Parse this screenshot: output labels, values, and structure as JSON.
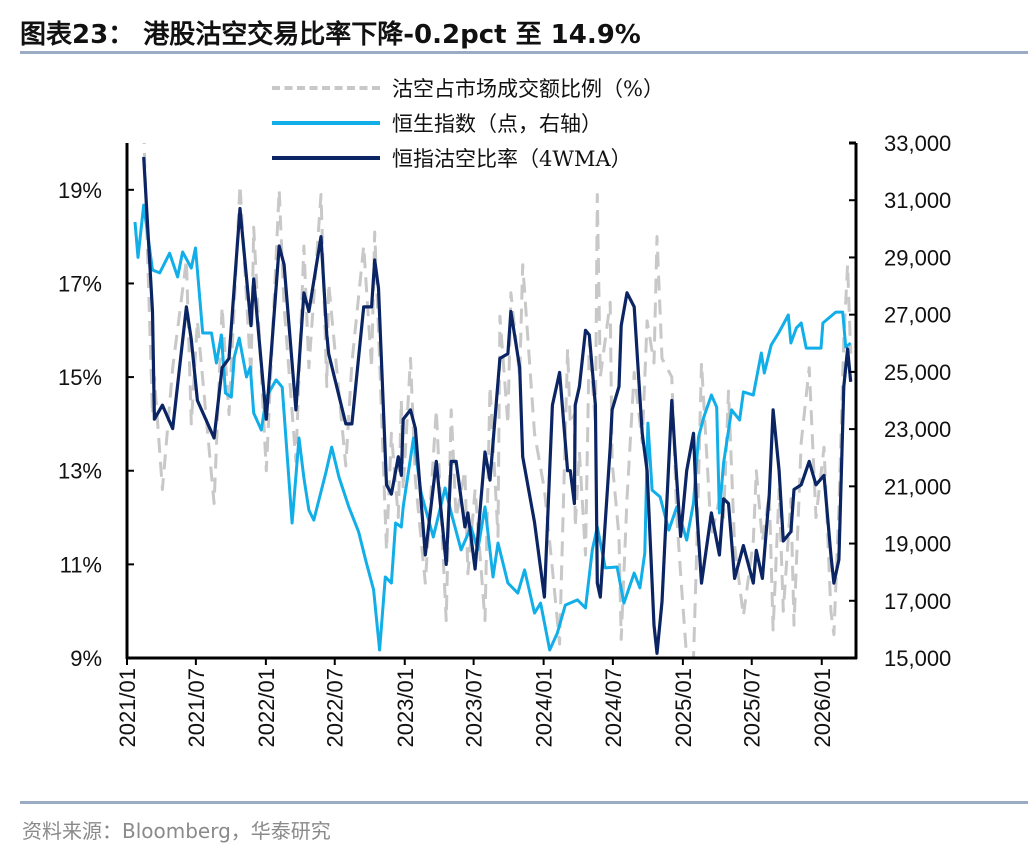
{
  "title": "图表23：  港股沽空交易比率下降-0.2pct 至 14.9%",
  "source": "资料来源：Bloomberg，华泰研究",
  "chart_data": {
    "type": "line",
    "title": "图表23：  港股沽空交易比率下降-0.2pct 至 14.9%",
    "legend_position": "top-center",
    "grid": false,
    "left_axis": {
      "ylim": [
        9,
        20
      ],
      "ticks": [
        "9%",
        "11%",
        "13%",
        "15%",
        "17%",
        "19%"
      ],
      "tick_values": [
        9,
        11,
        13,
        15,
        17,
        19
      ]
    },
    "right_axis": {
      "ylim": [
        15000,
        33000
      ],
      "ticks": [
        "15,000",
        "17,000",
        "19,000",
        "21,000",
        "23,000",
        "25,000",
        "27,000",
        "29,000",
        "31,000",
        "33,000"
      ],
      "tick_values": [
        15000,
        17000,
        19000,
        21000,
        23000,
        25000,
        27000,
        29000,
        31000,
        33000
      ]
    },
    "x_axis": {
      "range": [
        "2021-01-01",
        "2026-04-01"
      ],
      "ticks": [
        "2021/01",
        "2021/07",
        "2022/01",
        "2022/07",
        "2023/01",
        "2023/07",
        "2024/01",
        "2024/07",
        "2025/01",
        "2025/07",
        "2026/01"
      ],
      "tick_dates": [
        "2021-01-01",
        "2021-07-01",
        "2022-01-01",
        "2022-07-01",
        "2023-01-01",
        "2023-07-01",
        "2024-01-01",
        "2024-07-01",
        "2025-01-01",
        "2025-07-01",
        "2026-01-01"
      ]
    },
    "colors": {
      "short_ratio_daily": "#c8c8c8",
      "hsi": "#12aee8",
      "short_ratio_4wma": "#0b2463"
    },
    "ratio_dates": [
      "2021-02-14",
      "2021-03-09",
      "2021-03-14",
      "2021-04-04",
      "2021-05-01",
      "2021-06-06",
      "2021-06-19",
      "2021-07-05",
      "2021-08-18",
      "2021-09-08",
      "2021-09-26",
      "2021-10-25",
      "2021-11-23",
      "2021-11-30",
      "2022-01-02",
      "2022-02-05",
      "2022-02-18",
      "2022-03-21",
      "2022-04-11",
      "2022-04-24",
      "2022-05-26",
      "2022-06-10",
      "2022-06-15",
      "2022-07-30",
      "2022-08-15",
      "2022-09-15",
      "2022-10-06",
      "2022-10-14",
      "2022-10-24",
      "2022-11-14",
      "2022-11-27",
      "2022-12-15",
      "2022-12-23",
      "2022-12-28",
      "2023-01-16",
      "2023-01-29",
      "2023-02-24",
      "2023-03-25",
      "2023-04-20",
      "2023-05-03",
      "2023-05-16",
      "2023-06-08",
      "2023-06-16",
      "2023-07-05",
      "2023-07-31",
      "2023-08-13",
      "2023-09-03",
      "2023-09-08",
      "2023-09-29",
      "2023-10-07",
      "2023-10-30",
      "2023-11-07",
      "2023-12-08",
      "2024-01-03",
      "2024-01-24",
      "2024-02-12",
      "2024-03-04",
      "2024-03-11",
      "2024-03-22",
      "2024-03-24",
      "2024-04-04",
      "2024-04-20",
      "2024-04-30",
      "2024-05-16",
      "2024-05-21",
      "2024-05-29",
      "2024-06-24",
      "2024-06-29",
      "2024-07-17",
      "2024-07-23",
      "2024-08-07",
      "2024-08-26",
      "2024-09-16",
      "2024-09-29",
      "2024-10-17",
      "2024-10-25",
      "2024-11-07",
      "2024-12-03",
      "2024-12-16",
      "2024-12-26",
      "2025-01-11",
      "2025-01-29",
      "2025-02-06",
      "2025-02-19",
      "2025-03-17",
      "2025-04-07",
      "2025-04-18",
      "2025-05-01",
      "2025-05-17",
      "2025-06-09",
      "2025-07-05",
      "2025-07-13",
      "2025-07-29",
      "2025-08-16",
      "2025-08-26",
      "2025-09-11",
      "2025-09-22",
      "2025-10-12",
      "2025-10-20",
      "2025-11-08",
      "2025-11-29",
      "2025-12-17",
      "2026-01-07",
      "2026-01-25",
      "2026-02-02",
      "2026-02-15",
      "2026-02-28",
      "2026-03-10",
      "2026-03-18"
    ],
    "series": [
      {
        "name": "沽空占市场成交额比例（%）",
        "axis": "left",
        "style": "dashed",
        "values": [
          20.3,
          14.2,
          15.0,
          12.6,
          15.2,
          17.5,
          14.0,
          16.2,
          12.3,
          16.5,
          14.2,
          19.1,
          15.0,
          18.2,
          13.0,
          19.0,
          16.5,
          13.2,
          17.8,
          15.2,
          18.9,
          14.8,
          17.0,
          13.1,
          15.3,
          17.8,
          15.2,
          18.1,
          16.0,
          11.3,
          13.8,
          12.0,
          14.5,
          12.6,
          15.4,
          12.8,
          10.6,
          14.3,
          9.8,
          14.3,
          12.0,
          13.0,
          10.8,
          12.6,
          9.8,
          14.8,
          11.6,
          16.3,
          14.0,
          16.8,
          15.0,
          17.4,
          13.8,
          12.6,
          10.9,
          9.3,
          15.6,
          14.0,
          14.2,
          11.8,
          13.4,
          11.2,
          15.8,
          14.0,
          18.9,
          15.0,
          16.6,
          13.2,
          11.6,
          9.4,
          12.4,
          15.1,
          13.6,
          16.2,
          15.3,
          18.0,
          15.4,
          15.0,
          12.0,
          10.8,
          9.0,
          9.0,
          11.2,
          15.3,
          11.6,
          12.4,
          12.0,
          14.7,
          11.4,
          9.9,
          11.5,
          13.0,
          11.5,
          12.5,
          9.6,
          12.6,
          10.0,
          12.4,
          9.7,
          13.6,
          15.2,
          12.0,
          13.5,
          10.0,
          9.5,
          12.2,
          15.8,
          17.4,
          15.5
        ]
      },
      {
        "name": "恒生指数（点，右轴）",
        "axis": "right",
        "style": "solid",
        "dates": [
          "2021-01-22",
          "2021-01-30",
          "2021-02-14",
          "2021-03-09",
          "2021-03-28",
          "2021-04-23",
          "2021-05-14",
          "2021-05-27",
          "2021-06-19",
          "2021-06-30",
          "2021-07-19",
          "2021-08-11",
          "2021-08-24",
          "2021-09-06",
          "2021-09-17",
          "2021-10-02",
          "2021-10-10",
          "2021-10-23",
          "2021-11-11",
          "2021-11-21",
          "2021-11-30",
          "2021-12-20",
          "2022-01-02",
          "2022-01-28",
          "2022-02-13",
          "2022-03-11",
          "2022-03-29",
          "2022-04-11",
          "2022-04-24",
          "2022-05-07",
          "2022-06-08",
          "2022-06-23",
          "2022-07-12",
          "2022-08-07",
          "2022-09-02",
          "2022-09-20",
          "2022-10-11",
          "2022-10-27",
          "2022-11-11",
          "2022-11-27",
          "2022-12-08",
          "2022-12-23",
          "2022-12-28",
          "2023-01-24",
          "2023-02-13",
          "2023-03-17",
          "2023-04-17",
          "2023-05-03",
          "2023-05-29",
          "2023-06-24",
          "2023-07-12",
          "2023-07-31",
          "2023-08-21",
          "2023-09-03",
          "2023-09-29",
          "2023-10-25",
          "2023-11-12",
          "2023-12-08",
          "2023-12-24",
          "2024-01-17",
          "2024-02-06",
          "2024-02-27",
          "2024-03-30",
          "2024-04-20",
          "2024-05-08",
          "2024-05-21",
          "2024-06-11",
          "2024-07-12",
          "2024-07-30",
          "2024-08-26",
          "2024-09-10",
          "2024-09-23",
          "2024-10-01",
          "2024-10-12",
          "2024-11-02",
          "2024-11-25",
          "2024-12-16",
          "2025-01-11",
          "2025-01-29",
          "2025-02-11",
          "2025-02-25",
          "2025-03-17",
          "2025-03-31",
          "2025-04-07",
          "2025-04-18",
          "2025-05-09",
          "2025-05-30",
          "2025-06-09",
          "2025-07-05",
          "2025-07-26",
          "2025-08-03",
          "2025-08-21",
          "2025-09-11",
          "2025-10-05",
          "2025-10-12",
          "2025-10-26",
          "2025-11-08",
          "2025-11-21",
          "2025-12-12",
          "2025-12-30",
          "2026-01-04",
          "2026-02-07",
          "2026-02-25",
          "2026-03-05",
          "2026-03-18"
        ],
        "values": [
          30240,
          29000,
          30830,
          28560,
          28460,
          29150,
          28320,
          29190,
          28630,
          29330,
          26360,
          26360,
          25310,
          26290,
          24260,
          24120,
          25520,
          26180,
          24820,
          25170,
          23560,
          22970,
          24120,
          24720,
          24470,
          19720,
          22690,
          21290,
          20170,
          19820,
          21500,
          22370,
          21330,
          20280,
          19400,
          18430,
          17380,
          15280,
          17830,
          17620,
          19720,
          19580,
          20280,
          22690,
          20770,
          19230,
          20940,
          20070,
          18780,
          19580,
          18780,
          20280,
          17830,
          19020,
          17620,
          17270,
          18080,
          16570,
          16920,
          15280,
          15870,
          16850,
          17030,
          16750,
          18780,
          19580,
          18150,
          18180,
          16920,
          17970,
          17450,
          18670,
          23210,
          20870,
          20630,
          19470,
          20280,
          19120,
          20420,
          22720,
          23420,
          24190,
          23770,
          20070,
          21820,
          23670,
          23320,
          24300,
          24190,
          25660,
          24960,
          25940,
          26390,
          26990,
          26010,
          26530,
          26710,
          25830,
          25830,
          25830,
          26710,
          27090,
          27090,
          25870,
          26010
        ]
      },
      {
        "name": "恒指沽空比率（4WMA）",
        "axis": "left",
        "style": "solid",
        "values": [
          19.7,
          16.4,
          14.1,
          14.4,
          13.9,
          16.5,
          15.8,
          14.5,
          13.7,
          15.2,
          15.4,
          18.6,
          16.1,
          17.1,
          14.1,
          17.8,
          17.4,
          14.3,
          16.8,
          16.4,
          18.0,
          15.9,
          15.5,
          14.0,
          14.0,
          16.5,
          16.5,
          17.5,
          16.9,
          12.7,
          12.5,
          13.3,
          12.9,
          14.1,
          14.3,
          13.9,
          11.2,
          13.2,
          11.0,
          13.2,
          13.2,
          11.8,
          12.1,
          10.9,
          13.4,
          12.8,
          14.9,
          15.4,
          15.5,
          16.4,
          15.2,
          13.3,
          11.9,
          10.3,
          14.4,
          15.1,
          13.0,
          13.0,
          12.3,
          14.4,
          14.8,
          16.0,
          15.9,
          14.4,
          10.6,
          10.3,
          13.5,
          14.3,
          14.8,
          16.1,
          16.8,
          16.5,
          13.8,
          13.0,
          9.7,
          9.1,
          10.2,
          14.5,
          12.8,
          11.6,
          13.0,
          13.8,
          12.2,
          10.6,
          12.1,
          11.2,
          12.4,
          12.3,
          10.7,
          11.4,
          10.6,
          11.3,
          10.7,
          12.5,
          14.3,
          13.0,
          11.5,
          11.7,
          12.6,
          12.7,
          13.2,
          12.7,
          12.9,
          11.2,
          10.6,
          11.1,
          14.8,
          15.6,
          14.9
        ]
      }
    ]
  }
}
